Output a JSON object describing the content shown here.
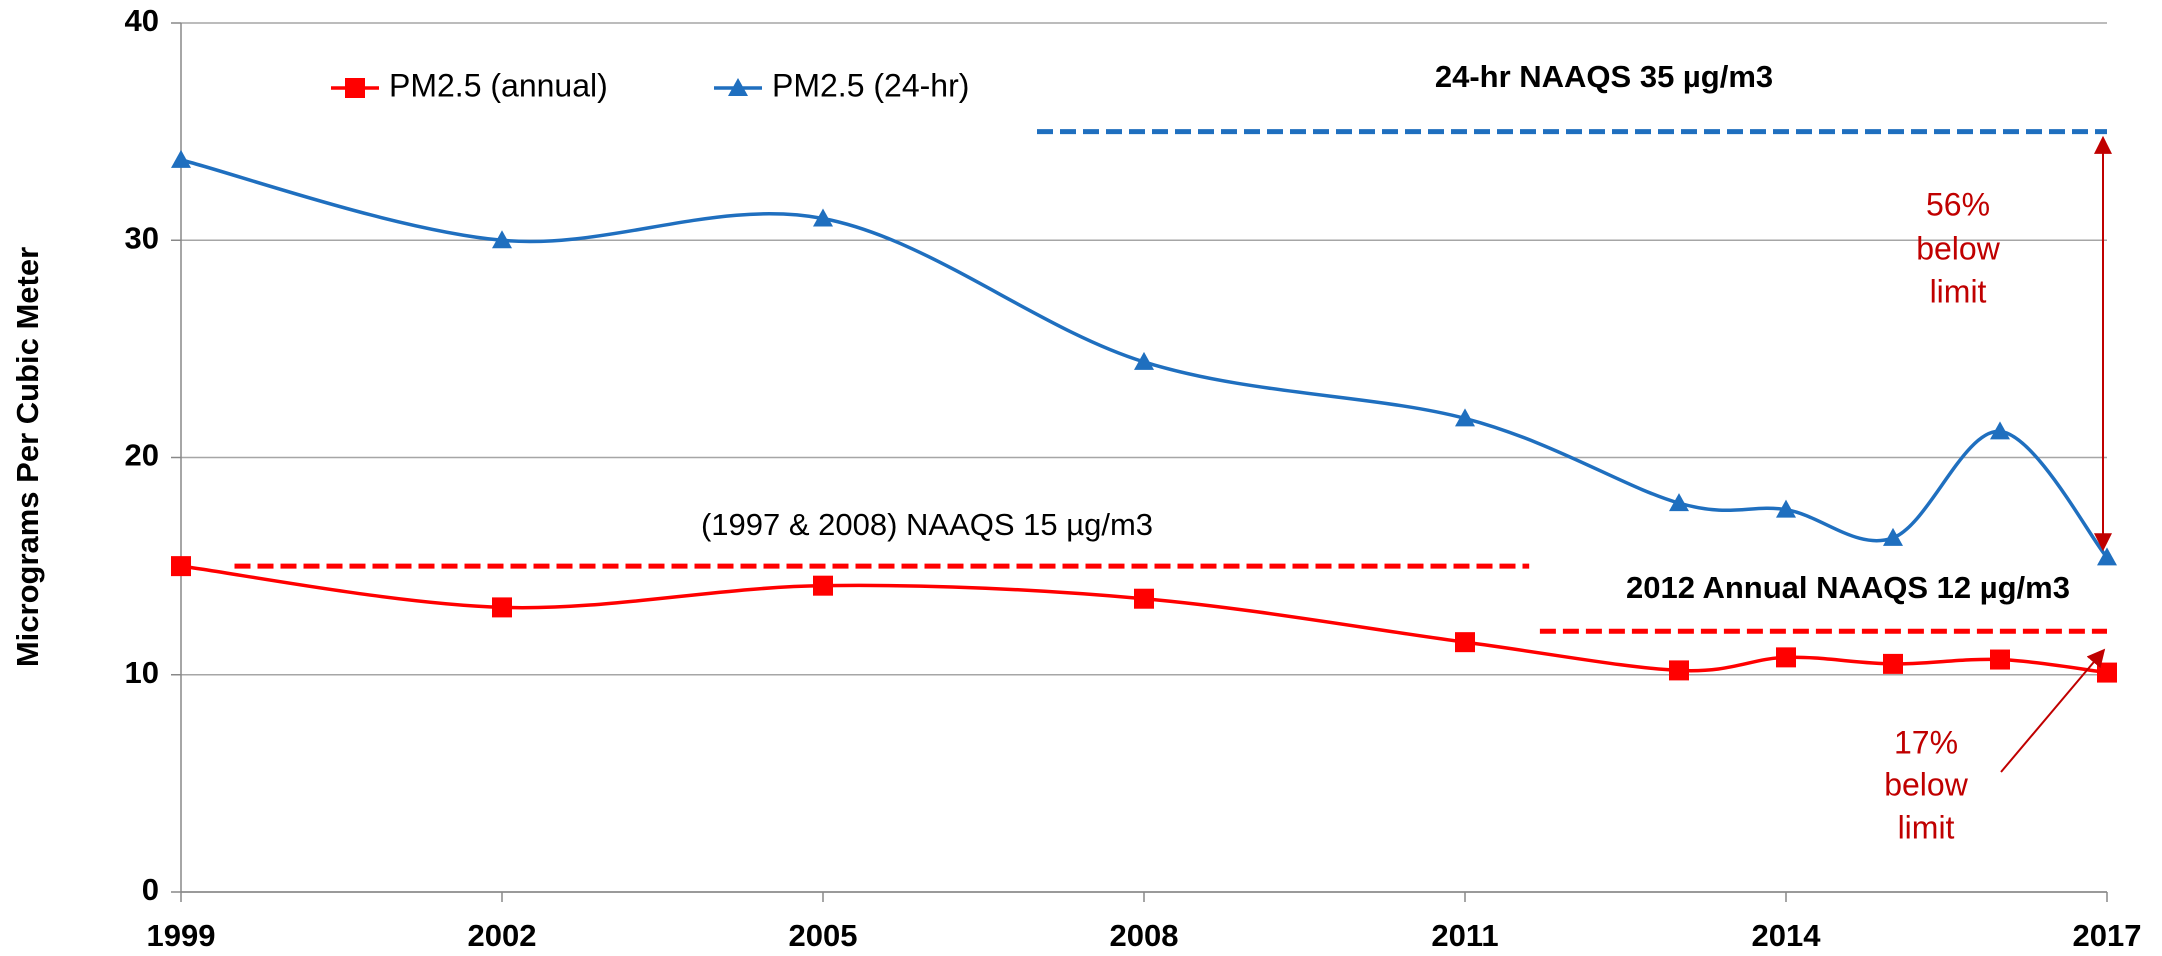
{
  "chart_data": {
    "type": "line",
    "y_label": "Micrograms Per Cubic Meter",
    "xlim": [
      1999,
      2017
    ],
    "xticks": [
      1999,
      2002,
      2005,
      2008,
      2011,
      2014,
      2017
    ],
    "ylim": [
      0,
      40
    ],
    "yticks": [
      0,
      10,
      20,
      30,
      40
    ],
    "grid": true,
    "legend": "top-left",
    "series": [
      {
        "name": "PM2.5 (annual)",
        "color": "#ff0000",
        "marker": "square",
        "x": [
          1999,
          2002,
          2005,
          2008,
          2011,
          2013,
          2014,
          2015,
          2016,
          2017
        ],
        "values": [
          15.0,
          13.1,
          14.1,
          13.5,
          11.5,
          10.2,
          10.8,
          10.5,
          10.7,
          10.1
        ]
      },
      {
        "name": "PM2.5 (24-hr)",
        "color": "#1f6fbf",
        "marker": "triangle",
        "x": [
          1999,
          2002,
          2005,
          2008,
          2011,
          2013,
          2014,
          2015,
          2016,
          2017
        ],
        "values": [
          33.7,
          30.0,
          31.0,
          24.4,
          21.8,
          17.9,
          17.6,
          16.3,
          21.2,
          15.4
        ]
      }
    ],
    "reference_lines": [
      {
        "label": "24-hr NAAQS 35 µg/m3",
        "value": 35,
        "x": [
          2007,
          2017
        ],
        "color": "#1f6fbf"
      },
      {
        "label": "(1997 & 2008) NAAQS 15 µg/m3",
        "value": 15,
        "x": [
          1999.5,
          2011.6
        ],
        "color": "#ff0000"
      },
      {
        "label": "2012 Annual NAAQS 12 µg/m3",
        "value": 12,
        "x": [
          2011.7,
          2017
        ],
        "color": "#ff0000"
      }
    ],
    "annotations": [
      {
        "lines": [
          "56%",
          "below",
          "limit"
        ],
        "color": "#c00000"
      },
      {
        "lines": [
          "17%",
          "below",
          "limit"
        ],
        "color": "#c00000"
      }
    ]
  }
}
